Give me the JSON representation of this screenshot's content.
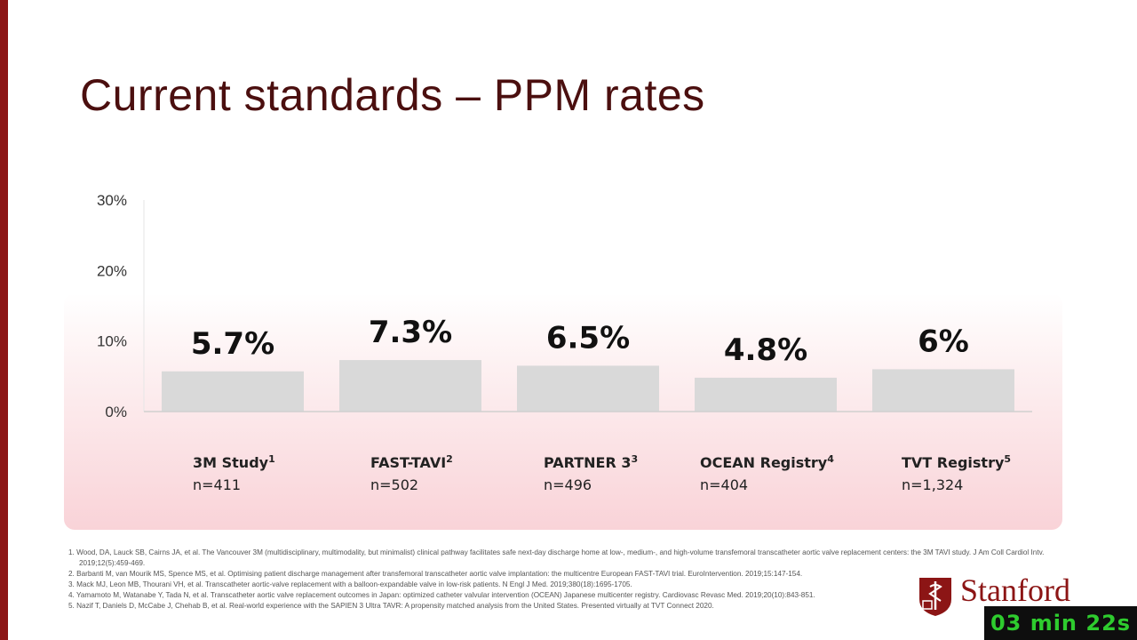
{
  "slide": {
    "title": "Current standards – PPM rates"
  },
  "chart_data": {
    "type": "bar",
    "title": "",
    "xlabel": "",
    "ylabel": "",
    "ylim": [
      0,
      30
    ],
    "y_ticks": [
      "0%",
      "10%",
      "20%",
      "30%"
    ],
    "y_tick_values": [
      0,
      10,
      20,
      30
    ],
    "categories": [
      "3M Study",
      "FAST-TAVI",
      "PARTNER 3",
      "OCEAN Registry",
      "TVT Registry"
    ],
    "category_refs": [
      "1",
      "2",
      "3",
      "4",
      "5"
    ],
    "sample_sizes": [
      "n=411",
      "n=502",
      "n=496",
      "n=404",
      "n=1,324"
    ],
    "values": [
      5.7,
      7.3,
      6.5,
      4.8,
      6.0
    ],
    "data_labels": [
      "5.7%",
      "7.3%",
      "6.5%",
      "4.8%",
      "6%"
    ],
    "bar_color": "#d9d9d9",
    "grid": false
  },
  "footnotes": [
    {
      "num": "1.",
      "text": "Wood, DA, Lauck SB, Cairns JA, et al. The Vancouver 3M (multidisciplinary, multimodality, but minimalist) clinical pathway facilitates safe next-day discharge home at low-, medium-, and high-volume transfemoral transcatheter aortic valve replacement centers: the 3M TAVI study. J Am Coll Cardiol Intv.",
      "cont": "2019;12(5):459-469."
    },
    {
      "num": "2.",
      "text": "Barbanti M, van Mourik MS, Spence MS, et al. Optimising patient discharge management after transfemoral transcatheter aortic valve implantation: the multicentre European FAST-TAVI trial. EuroIntervention. 2019;15:147-154.",
      "cont": ""
    },
    {
      "num": "3.",
      "text": "Mack MJ, Leon MB, Thourani VH, et al. Transcatheter aortic-valve replacement with a balloon-expandable valve in low-risk patients. N Engl J Med. 2019;380(18):1695-1705.",
      "cont": ""
    },
    {
      "num": "4.",
      "text": "Yamamoto M, Watanabe Y, Tada N, et al. Transcatheter aortic valve replacement outcomes in Japan: optimized catheter valvular intervention (OCEAN) Japanese multicenter registry. Cardiovasc Revasc Med. 2019;20(10):843-851.",
      "cont": ""
    },
    {
      "num": "5.",
      "text": "Nazif T, Daniels D, McCabe J, Chehab B, et al. Real-world experience with the SAPIEN 3 Ultra TAVR: A propensity matched analysis from the United States. Presented virtually at TVT Connect 2020.",
      "cont": ""
    }
  ],
  "branding": {
    "wordmark": "Stanford",
    "brand_color": "#8c1515"
  },
  "timer": {
    "text": "03 min 22s",
    "color": "#2ecc2e"
  }
}
